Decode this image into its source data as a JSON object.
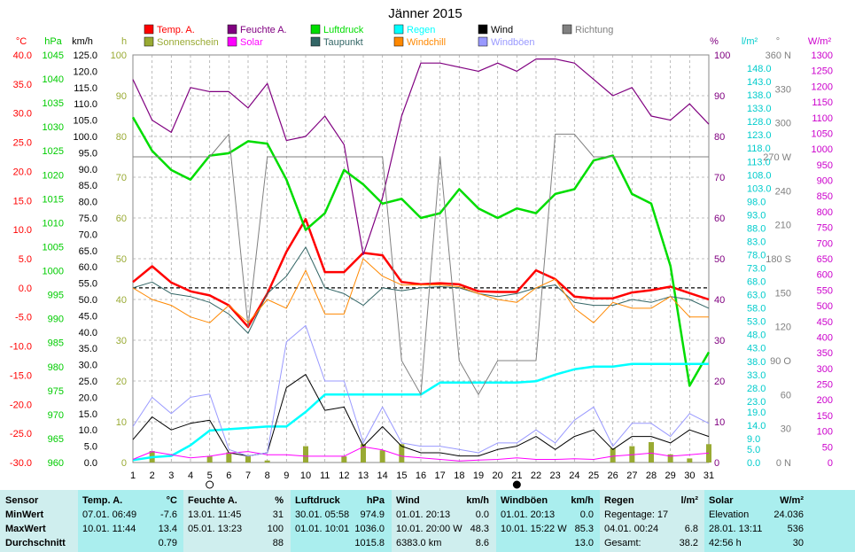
{
  "title": "Jänner 2015",
  "unit_labels": {
    "temp": "°C",
    "pressure": "hPa",
    "wind": "km/h",
    "sun": "h",
    "humidity": "%",
    "solar_lm": "l/m²",
    "dir": "°",
    "solar_wm": "W/m²"
  },
  "colors": {
    "temp": "#ff0000",
    "humidity": "#800080",
    "pressure": "#00dd00",
    "rain": "#00ffff",
    "wind": "#000000",
    "direction": "#808080",
    "sunshine": "#99aa33",
    "solar": "#ff00ff",
    "dewpoint": "#336666",
    "windchill": "#ff8800",
    "gusts": "#9999ff",
    "axis_temp": "#ff0000",
    "axis_pressure": "#00cc00",
    "axis_wind": "#000000",
    "axis_sun": "#99aa33",
    "axis_hum": "#800080",
    "axis_rain": "#00cccc",
    "axis_dir": "#808080",
    "axis_solar": "#cc00cc"
  },
  "legend": [
    {
      "label": "Temp. A.",
      "color": "#ff0000"
    },
    {
      "label": "Feuchte A.",
      "color": "#800080"
    },
    {
      "label": "Luftdruck",
      "color": "#00dd00"
    },
    {
      "label": "Regen",
      "color": "#00ffff"
    },
    {
      "label": "Wind",
      "color": "#000000"
    },
    {
      "label": "Richtung",
      "color": "#808080"
    },
    {
      "label": "Sonnenschein",
      "color": "#99aa33"
    },
    {
      "label": "Solar",
      "color": "#ff00ff"
    },
    {
      "label": "Taupunkt",
      "color": "#336666"
    },
    {
      "label": "Windchill",
      "color": "#ff8800"
    },
    {
      "label": "Windböen",
      "color": "#9999ff"
    }
  ],
  "chart_data": {
    "type": "line",
    "title": "Jänner 2015",
    "x": [
      1,
      2,
      3,
      4,
      5,
      6,
      7,
      8,
      9,
      10,
      11,
      12,
      13,
      14,
      15,
      16,
      17,
      18,
      19,
      20,
      21,
      22,
      23,
      24,
      25,
      26,
      27,
      28,
      29,
      30,
      31
    ],
    "axes": {
      "temp": {
        "min": -30,
        "max": 40,
        "ticks": [
          "40.0",
          "35.0",
          "30.0",
          "25.0",
          "20.0",
          "15.0",
          "10.0",
          "5.0",
          "0.0",
          "-5.0",
          "-10.0",
          "-15.0",
          "-20.0",
          "-25.0",
          "-30.0"
        ]
      },
      "pressure": {
        "min": 960,
        "max": 1045,
        "ticks": [
          "1045",
          "1040",
          "1035",
          "1030",
          "1025",
          "1020",
          "1015",
          "1010",
          "1005",
          "1000",
          "995",
          "990",
          "985",
          "980",
          "975",
          "970",
          "965",
          "960"
        ]
      },
      "wind": {
        "min": 0,
        "max": 125,
        "ticks": [
          "125.0",
          "120.0",
          "115.0",
          "110.0",
          "105.0",
          "100.0",
          "95.0",
          "90.0",
          "85.0",
          "80.0",
          "75.0",
          "70.0",
          "65.0",
          "60.0",
          "55.0",
          "50.0",
          "45.0",
          "40.0",
          "35.0",
          "30.0",
          "25.0",
          "20.0",
          "15.0",
          "10.0",
          "5.0",
          "0.0"
        ]
      },
      "sun": {
        "min": 0,
        "max": 100,
        "ticks": [
          "100",
          "90",
          "80",
          "70",
          "60",
          "50",
          "40",
          "30",
          "20",
          "10",
          "0"
        ]
      },
      "humidity": {
        "min": 0,
        "max": 100,
        "ticks": [
          "100",
          "90",
          "80",
          "70",
          "60",
          "50",
          "40",
          "30",
          "20",
          "10",
          "0"
        ]
      },
      "rain": {
        "min": 0,
        "max": 153,
        "ticks": [
          "148.0",
          "143.0",
          "138.0",
          "133.0",
          "128.0",
          "123.0",
          "118.0",
          "113.0",
          "108.0",
          "103.0",
          "98.0",
          "93.0",
          "88.0",
          "83.0",
          "78.0",
          "73.0",
          "68.0",
          "63.0",
          "58.0",
          "53.0",
          "48.0",
          "43.0",
          "38.0",
          "33.0",
          "28.0",
          "23.0",
          "19.0",
          "14.0",
          "9.0",
          "5.0",
          "0.0"
        ]
      },
      "direction": {
        "min": 0,
        "max": 360,
        "ticks": [
          "360 N",
          "330",
          "300",
          "270 W",
          "240",
          "210",
          "180 S",
          "150",
          "120",
          "90 O",
          "60",
          "30",
          "0 N"
        ]
      },
      "solar": {
        "min": 0,
        "max": 1300,
        "ticks": [
          "1300",
          "1250",
          "1200",
          "1150",
          "1100",
          "1050",
          "1000",
          "950",
          "900",
          "850",
          "800",
          "750",
          "700",
          "650",
          "600",
          "550",
          "500",
          "450",
          "400",
          "350",
          "300",
          "250",
          "200",
          "150",
          "100",
          "50",
          "0"
        ]
      }
    },
    "series": [
      {
        "name": "Temp. A.",
        "axis": "temp",
        "width": 2.5,
        "values": [
          1.0,
          3.7,
          0.9,
          -0.6,
          -1.3,
          -3.0,
          -6.7,
          -1.0,
          6.2,
          11.8,
          2.7,
          2.7,
          6.0,
          5.6,
          1.0,
          0.6,
          0.8,
          0.6,
          -0.6,
          -0.7,
          -0.7,
          3.0,
          1.5,
          -1.5,
          -1.8,
          -1.8,
          -0.8,
          -0.4,
          0.2,
          -0.9,
          -2.0
        ]
      },
      {
        "name": "Feuchte A.",
        "axis": "humidity",
        "width": 1.2,
        "values": [
          94,
          84,
          81,
          92,
          91,
          91,
          87,
          93,
          79,
          80,
          85,
          78,
          51,
          65,
          85,
          98,
          98,
          97,
          96,
          98,
          96,
          99,
          99,
          98,
          94,
          90,
          92,
          85,
          84,
          88,
          83
        ]
      },
      {
        "name": "Luftdruck",
        "axis": "pressure",
        "width": 2.5,
        "values": [
          1032,
          1025,
          1021,
          1019,
          1024,
          1024.5,
          1027,
          1026.5,
          1019,
          1008.5,
          1012,
          1021,
          1018,
          1014,
          1015,
          1011,
          1012,
          1017,
          1013,
          1011,
          1013,
          1012,
          1016,
          1017,
          1023,
          1024,
          1016,
          1014,
          1001,
          976,
          983
        ]
      },
      {
        "name": "Regen",
        "axis": "rain",
        "width": 2.5,
        "values": [
          0.9,
          2.0,
          2.5,
          6.5,
          12.0,
          12.5,
          13.0,
          13.5,
          13.5,
          19.0,
          25.5,
          25.5,
          25.5,
          25.5,
          25.5,
          25.5,
          30.0,
          30.0,
          30.0,
          30.0,
          30.0,
          30.5,
          33.0,
          35.0,
          36.0,
          36.0,
          37.0,
          37.0,
          37.0,
          37.0,
          37.0
        ]
      },
      {
        "name": "Wind",
        "axis": "wind",
        "width": 1.0,
        "values": [
          7,
          14,
          10,
          12,
          13,
          3,
          2,
          3,
          23,
          27,
          16,
          17,
          5,
          11,
          5,
          3,
          3,
          2,
          2,
          4,
          5,
          8,
          4,
          8,
          10,
          4,
          8,
          8,
          6,
          10,
          8
        ]
      },
      {
        "name": "Richtung",
        "axis": "direction",
        "width": 1.0,
        "values": [
          270,
          270,
          270,
          270,
          270,
          290,
          120,
          270,
          270,
          270,
          270,
          270,
          270,
          270,
          90,
          60,
          270,
          90,
          60,
          90,
          90,
          90,
          290,
          290,
          270,
          270,
          270,
          270,
          270,
          270,
          270
        ]
      },
      {
        "name": "Solar",
        "axis": "solar",
        "width": 1.0,
        "values": [
          10,
          35,
          25,
          15,
          20,
          30,
          35,
          25,
          25,
          20,
          20,
          20,
          50,
          40,
          20,
          15,
          10,
          5,
          8,
          10,
          15,
          10,
          10,
          12,
          10,
          20,
          25,
          30,
          20,
          25,
          30
        ]
      },
      {
        "name": "Taupunkt",
        "axis": "temp",
        "width": 1.0,
        "values": [
          0.0,
          1.0,
          -1.0,
          -1.5,
          -2.5,
          -4.5,
          -7.8,
          -1.0,
          2.0,
          7.0,
          0.0,
          -1.0,
          -3.0,
          0.0,
          -0.5,
          0.0,
          0.2,
          0.0,
          -1.0,
          -1.5,
          -1.0,
          0.0,
          0.5,
          -2.5,
          -3.0,
          -3.0,
          -2.0,
          -2.5,
          -1.5,
          -2.0,
          -3.5
        ]
      },
      {
        "name": "Windchill",
        "axis": "temp",
        "width": 1.0,
        "values": [
          0.0,
          -2.0,
          -3.0,
          -5.0,
          -6.0,
          -3.0,
          -6.0,
          -2.0,
          -3.5,
          3.0,
          -4.5,
          -4.5,
          5.0,
          2.0,
          0.5,
          0.5,
          0.5,
          0.2,
          -1.0,
          -2.0,
          -2.5,
          0.0,
          1.5,
          -3.5,
          -6.0,
          -2.5,
          -3.5,
          -3.5,
          -1.5,
          -5.0,
          -5.0
        ]
      },
      {
        "name": "Windböen",
        "axis": "wind",
        "width": 1.0,
        "values": [
          11,
          20,
          15,
          20,
          21,
          4,
          2,
          3,
          37,
          42,
          25,
          25,
          6,
          17,
          6,
          5,
          5,
          4,
          3,
          6,
          6,
          10,
          6,
          13,
          17,
          5,
          12,
          12,
          8,
          15,
          12
        ]
      }
    ],
    "bars": [
      {
        "name": "Sonnenschein",
        "axis": "sun",
        "values": [
          0,
          2.8,
          0,
          0,
          1.5,
          2.5,
          1.5,
          0.5,
          0,
          4.0,
          0,
          1.5,
          4.5,
          3.0,
          4.5,
          0,
          0,
          0,
          0,
          0,
          0,
          0,
          0,
          0,
          0,
          3.5,
          4.0,
          5.0,
          2.0,
          1.0,
          4.5
        ]
      }
    ],
    "hlines": [
      {
        "axis": "temp",
        "value": 0,
        "style": "dashed"
      }
    ],
    "moon_markers": [
      {
        "day": 5,
        "phase": "full"
      },
      {
        "day": 21,
        "phase": "new"
      }
    ]
  },
  "stats": {
    "headers": [
      "Sensor",
      "Temp. A.",
      "°C",
      "Feuchte A.",
      "%",
      "Luftdruck",
      "hPa",
      "Wind",
      "km/h",
      "Windböen",
      "km/h",
      "Regen",
      "l/m²",
      "Solar",
      "W/m²"
    ],
    "rows": [
      {
        "label": "MinWert",
        "temp_time": "07.01.  06:49",
        "temp_val": "-7.6",
        "hum_time": "13.01.  11:45",
        "hum_val": "31",
        "pres_time": "30.01.  05:58",
        "pres_val": "974.9",
        "wind_time": "01.01.  20:13",
        "wind_val": "0.0",
        "gust_time": "01.01.  20:13",
        "gust_val": "0.0",
        "rain_text": "Regentage: 17",
        "rain_val": "",
        "solar_text": "Elevation",
        "solar_val": "24.036"
      },
      {
        "label": "MaxWert",
        "temp_time": "10.01.  11:44",
        "temp_val": "13.4",
        "hum_time": "05.01.  13:23",
        "hum_val": "100",
        "pres_time": "01.01.  10:01",
        "pres_val": "1036.0",
        "wind_time": "10.01.  20:00  W",
        "wind_val": "48.3",
        "gust_time": "10.01.  15:22  W",
        "gust_val": "85.3",
        "rain_text": "04.01.  00:24",
        "rain_val": "6.8",
        "solar_text": "28.01.  13:11",
        "solar_val": "536"
      },
      {
        "label": "Durchschnitt",
        "temp_time": "",
        "temp_val": "0.79",
        "hum_time": "",
        "hum_val": "88",
        "pres_time": "",
        "pres_val": "1015.8",
        "wind_time": "6383.0 km",
        "wind_val": "8.6",
        "gust_time": "",
        "gust_val": "13.0",
        "rain_text": "Gesamt:",
        "rain_val": "38.2",
        "solar_text": "42:56 h",
        "solar_val": "30"
      }
    ]
  }
}
